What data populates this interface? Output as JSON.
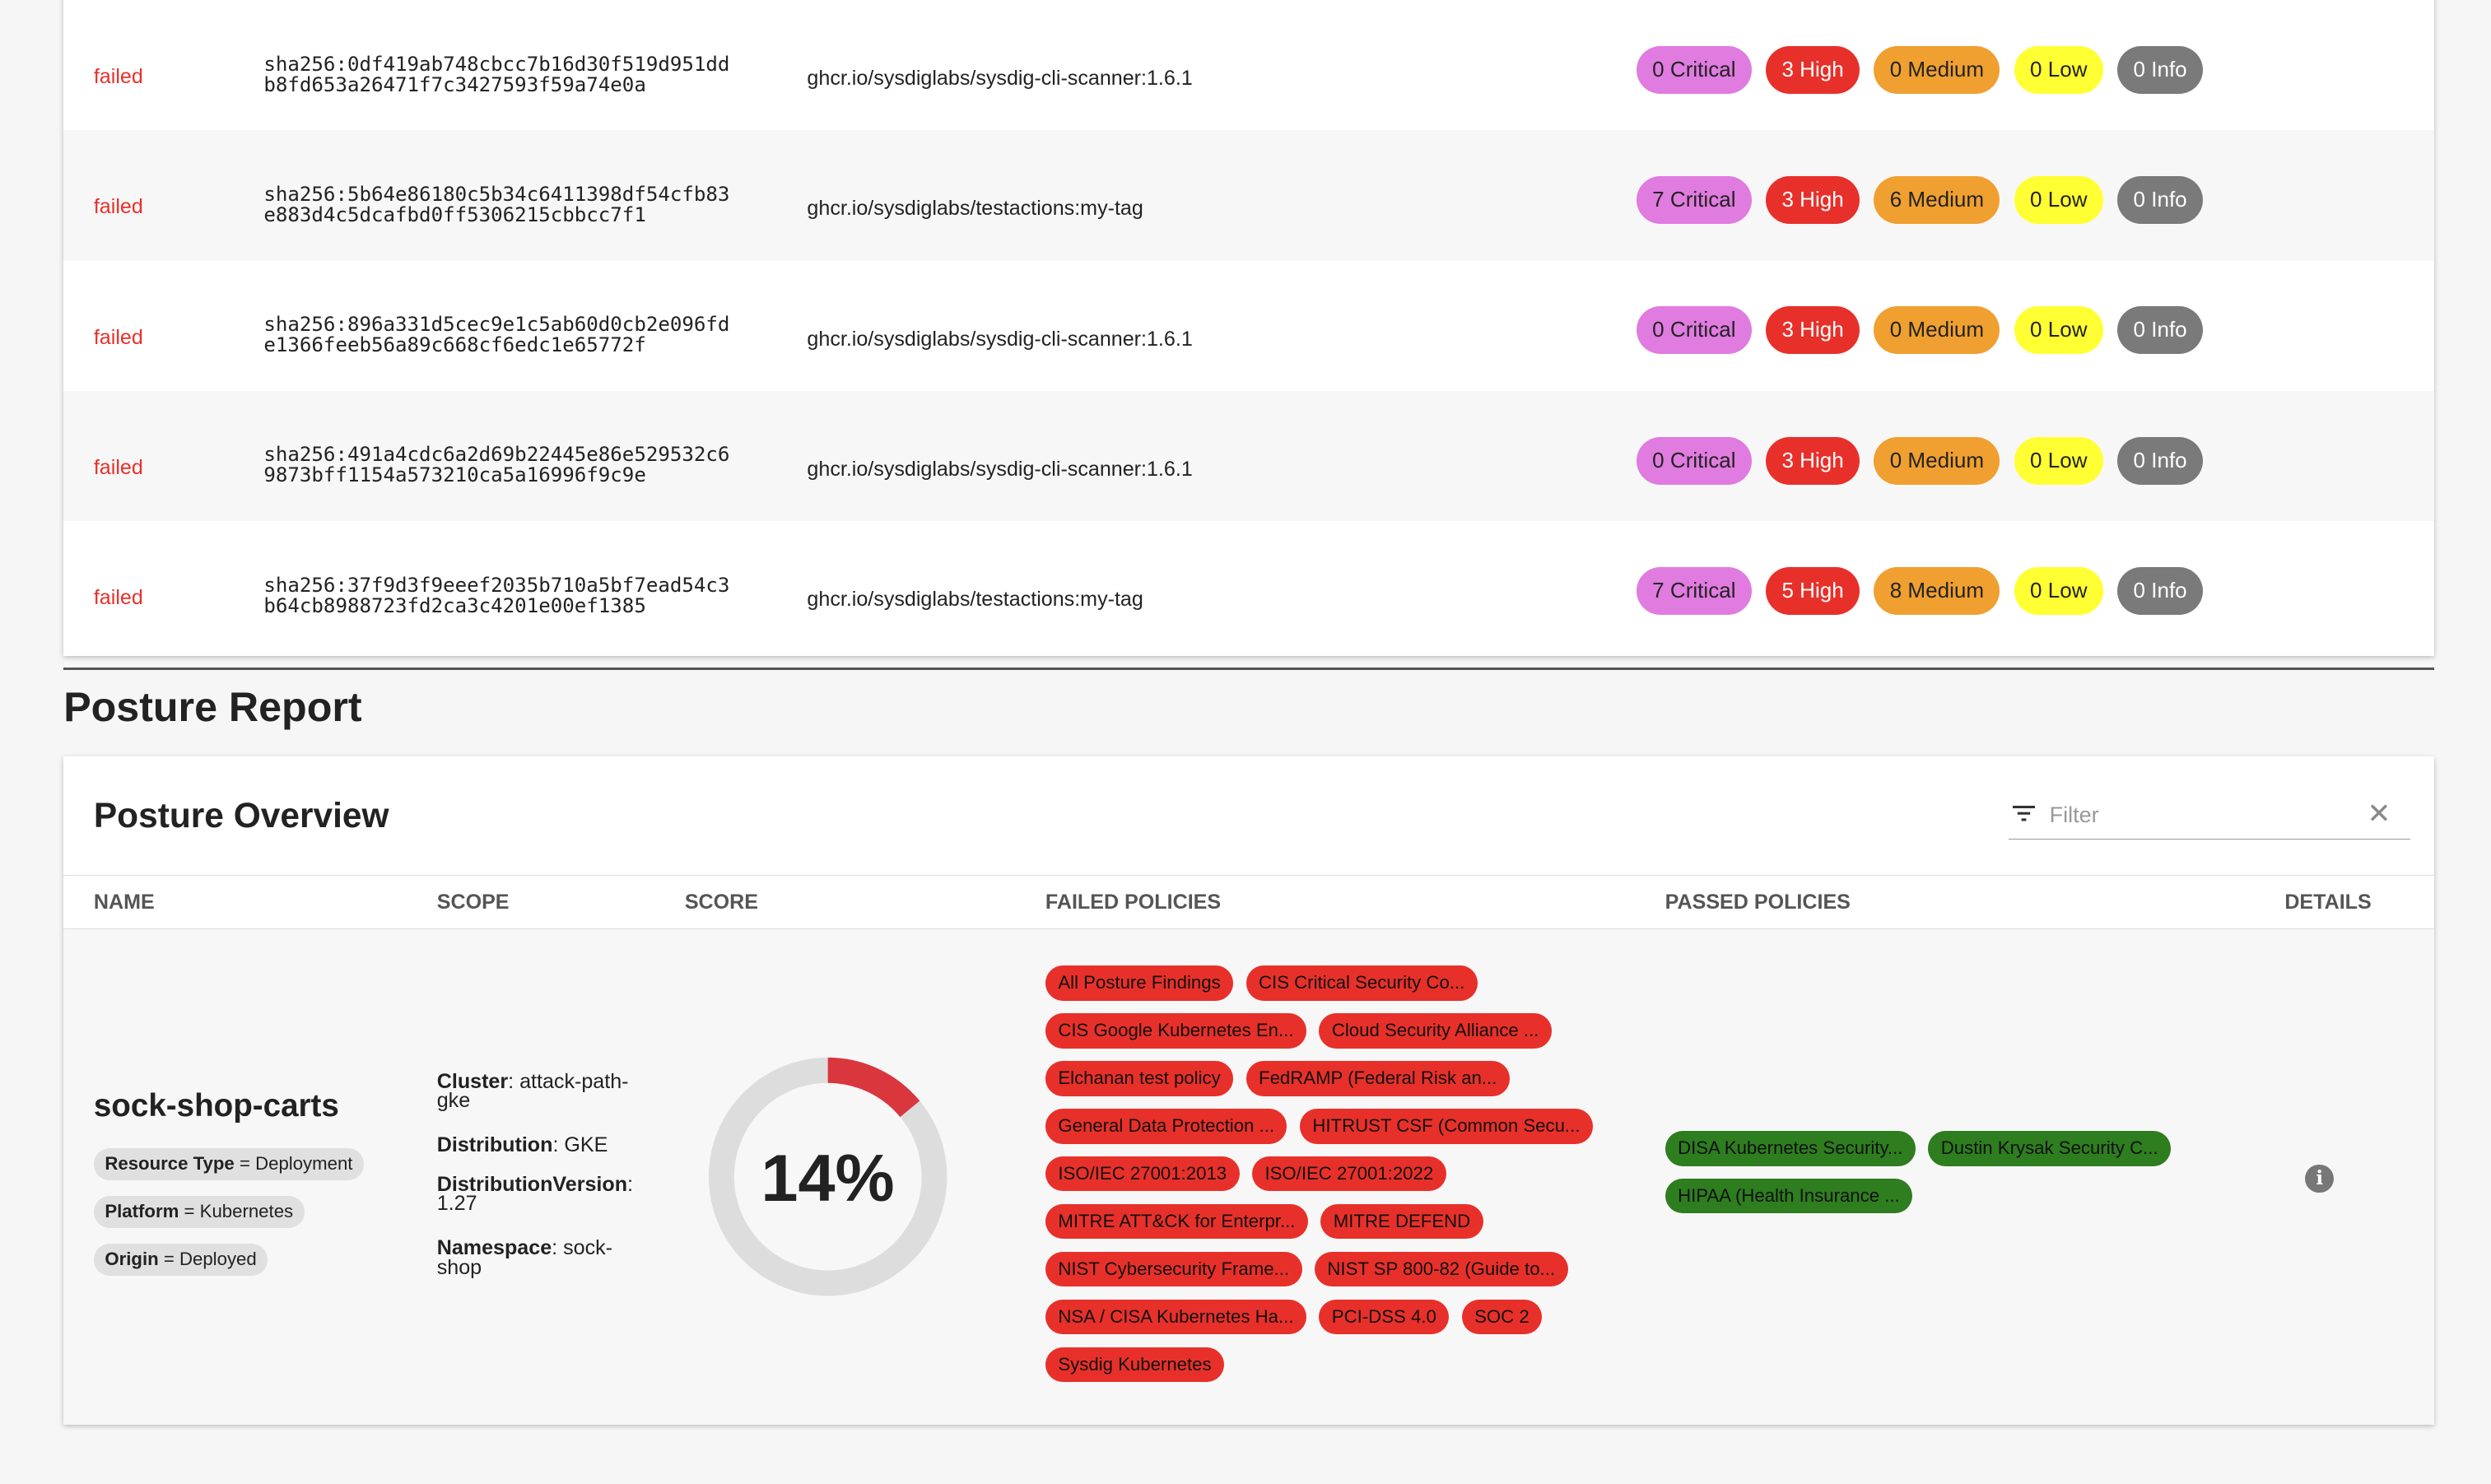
{
  "scans": [
    {
      "status": "failed",
      "hash1": "sha256:0df419ab748cbcc7b16d30f519d951dd",
      "hash2": "b8fd653a26471f7c3427593f59a74e0a",
      "image": "ghcr.io/sysdiglabs/sysdig-cli-scanner:1.6.1",
      "critical": "0 Critical",
      "high": "3 High",
      "medium": "0 Medium",
      "low": "0 Low",
      "info": "0 Info"
    },
    {
      "status": "failed",
      "hash1": "sha256:5b64e86180c5b34c6411398df54cfb83",
      "hash2": "e883d4c5dcafbd0ff5306215cbbcc7f1",
      "image": "ghcr.io/sysdiglabs/testactions:my-tag",
      "critical": "7 Critical",
      "high": "3 High",
      "medium": "6 Medium",
      "low": "0 Low",
      "info": "0 Info"
    },
    {
      "status": "failed",
      "hash1": "sha256:896a331d5cec9e1c5ab60d0cb2e096fd",
      "hash2": "e1366feeb56a89c668cf6edc1e65772f",
      "image": "ghcr.io/sysdiglabs/sysdig-cli-scanner:1.6.1",
      "critical": "0 Critical",
      "high": "3 High",
      "medium": "0 Medium",
      "low": "0 Low",
      "info": "0 Info"
    },
    {
      "status": "failed",
      "hash1": "sha256:491a4cdc6a2d69b22445e86e529532c6",
      "hash2": "9873bff1154a573210ca5a16996f9c9e",
      "image": "ghcr.io/sysdiglabs/sysdig-cli-scanner:1.6.1",
      "critical": "0 Critical",
      "high": "3 High",
      "medium": "0 Medium",
      "low": "0 Low",
      "info": "0 Info"
    },
    {
      "status": "failed",
      "hash1": "sha256:37f9d3f9eeef2035b710a5bf7ead54c3",
      "hash2": "b64cb8988723fd2ca3c4201e00ef1385",
      "image": "ghcr.io/sysdiglabs/testactions:my-tag",
      "critical": "7 Critical",
      "high": "5 High",
      "medium": "8 Medium",
      "low": "0 Low",
      "info": "0 Info"
    }
  ],
  "report_title": "Posture Report",
  "overview": {
    "title": "Posture Overview",
    "filter_placeholder": "Filter",
    "columns": [
      "NAME",
      "SCOPE",
      "SCORE",
      "FAILED POLICIES",
      "PASSED POLICIES",
      "DETAILS"
    ],
    "row": {
      "name": "sock-shop-carts",
      "tags": [
        {
          "k": "Resource Type",
          "v": "Deployment"
        },
        {
          "k": "Platform",
          "v": "Kubernetes"
        },
        {
          "k": "Origin",
          "v": "Deployed"
        }
      ],
      "scope": [
        {
          "k": "Cluster",
          "v": "attack-path-gke"
        },
        {
          "k": "Distribution",
          "v": "GKE"
        },
        {
          "k": "DistributionVersion",
          "v": "1.27"
        },
        {
          "k": "Namespace",
          "v": "sock-shop"
        }
      ],
      "score": 14,
      "score_label": "14%",
      "failed": [
        "All Posture Findings",
        "CIS Critical Security Co...",
        "CIS Google Kubernetes En...",
        "Cloud Security Alliance ...",
        "Elchanan test policy",
        "FedRAMP (Federal Risk an...",
        "General Data Protection ...",
        "HITRUST CSF (Common Secu...",
        "ISO/IEC 27001:2013",
        "ISO/IEC 27001:2022",
        "MITRE ATT&CK for Enterpr...",
        "MITRE DEFEND",
        "NIST Cybersecurity Frame...",
        "NIST SP 800-82 (Guide to...",
        "NSA / CISA Kubernetes Ha...",
        "PCI-DSS 4.0",
        "SOC 2",
        "Sysdig Kubernetes"
      ],
      "passed": [
        "DISA Kubernetes Security...",
        "Dustin Krysak Security C...",
        "HIPAA (Health Insurance ..."
      ]
    }
  },
  "colors": {
    "critical": "#e07be0",
    "high": "#e8302a",
    "medium": "#f0a030",
    "low": "#ffff33",
    "info": "#7a7a7a",
    "passed": "#2e7d1f",
    "score_arc": "#d9363e",
    "score_track": "#dddddd"
  }
}
